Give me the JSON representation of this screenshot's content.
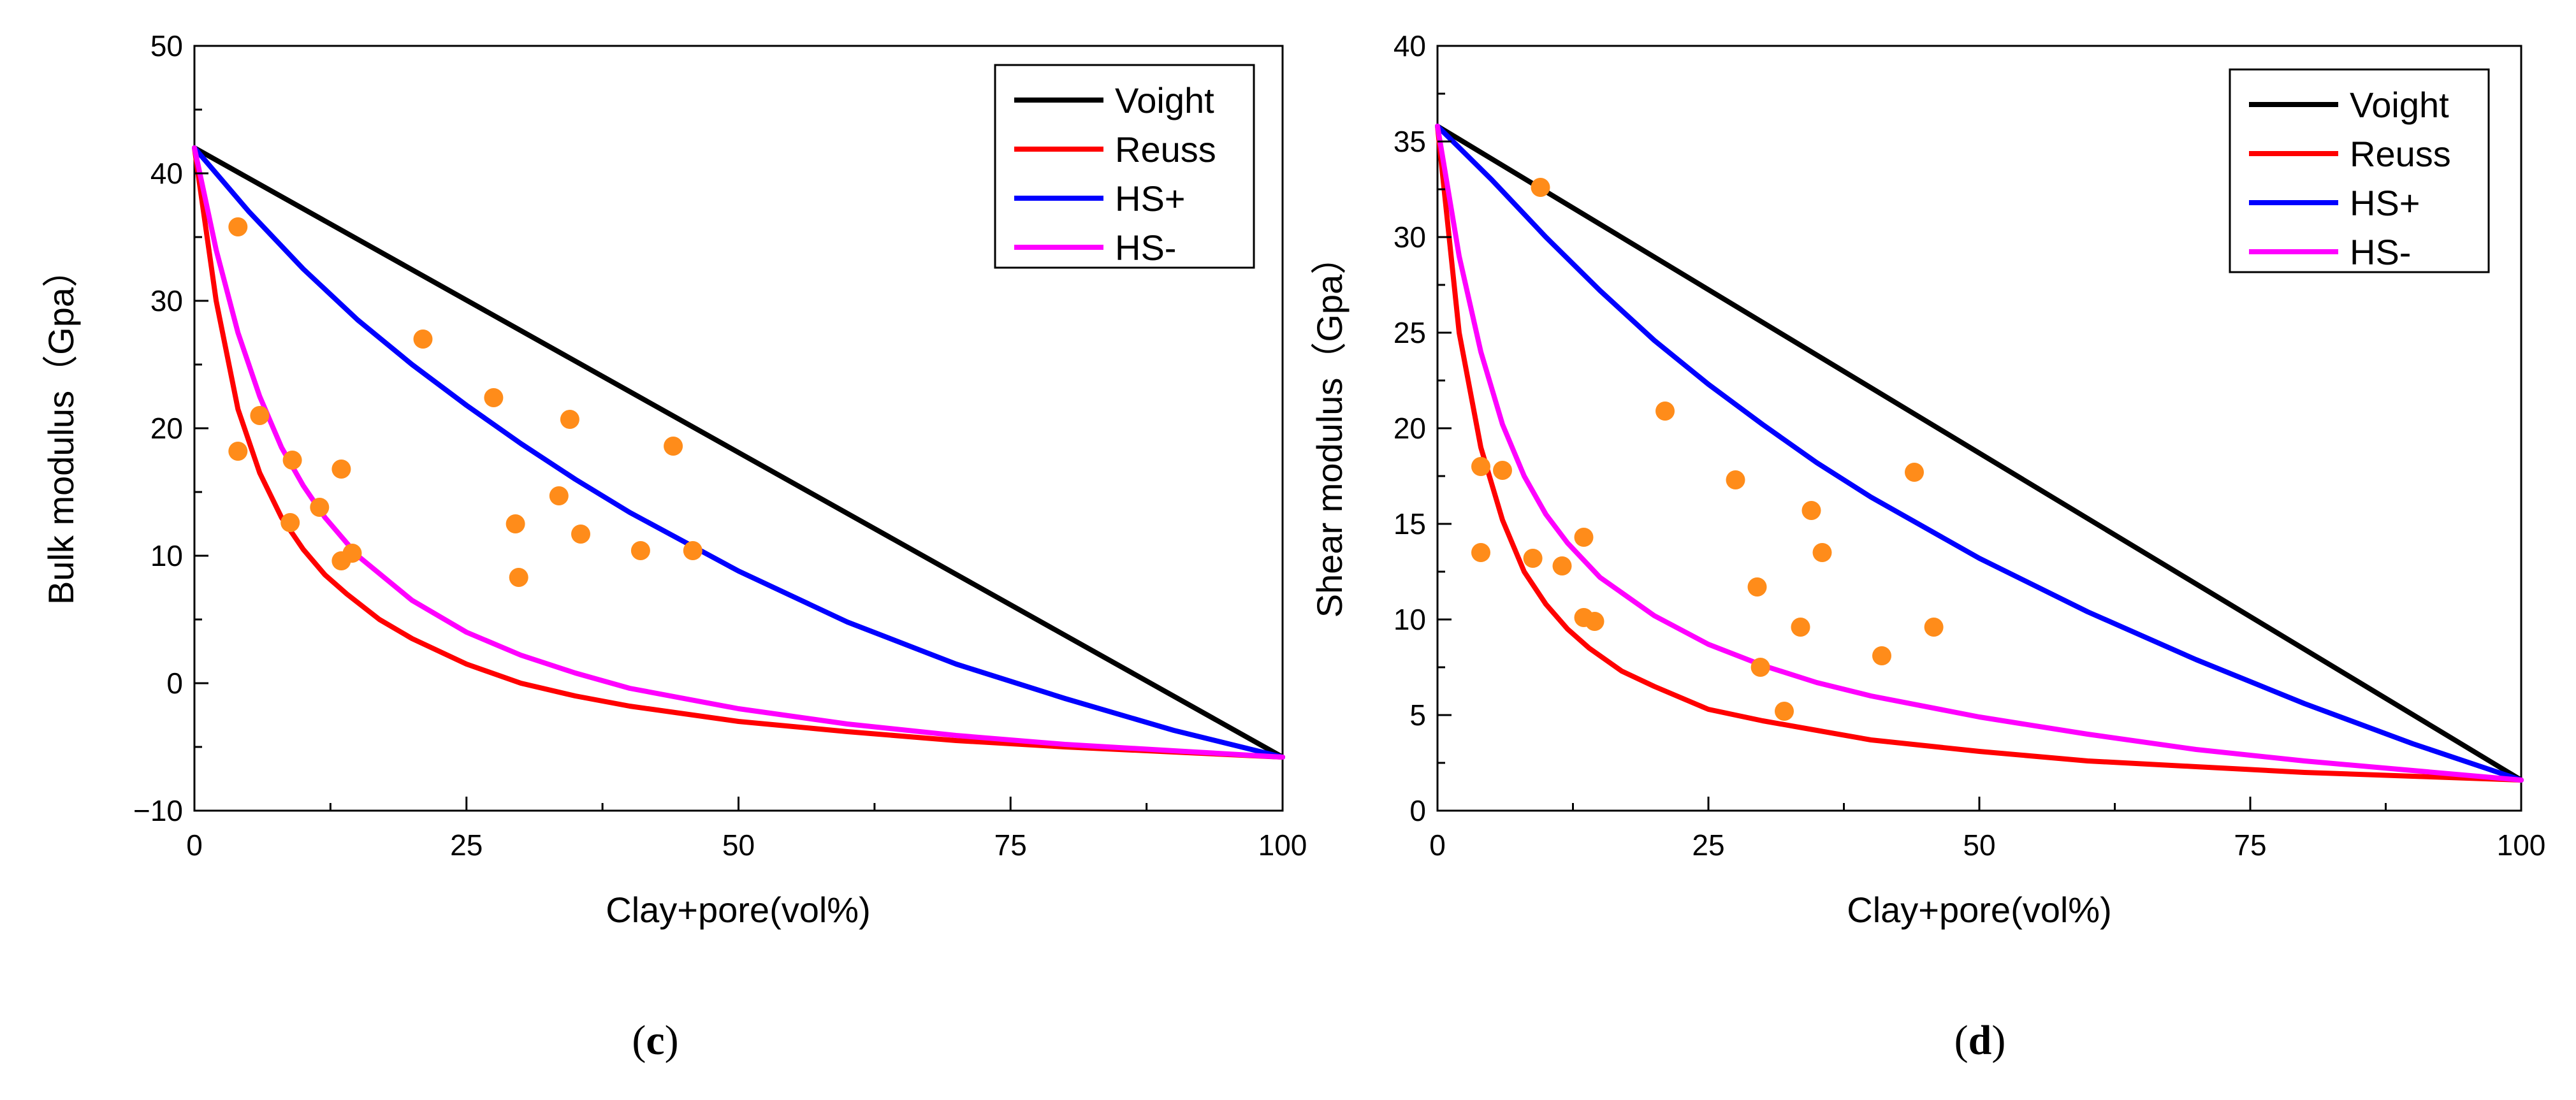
{
  "chart_data": [
    {
      "type": "line",
      "panel_label_open": "(",
      "panel_label_letter": "c",
      "panel_label_close": ")",
      "xlabel": "Clay+pore(vol%)",
      "ylabel": "Bulk modulus（Gpa）",
      "xlim": [
        0,
        100
      ],
      "ylim": [
        -10,
        50
      ],
      "xticks": [
        0,
        25,
        50,
        75,
        100
      ],
      "yticks": [
        -10,
        0,
        10,
        20,
        30,
        40,
        50
      ],
      "legend_position": "top-right",
      "series": [
        {
          "name": "Voight",
          "color": "#000000",
          "kind": "line",
          "x": [
            0,
            100
          ],
          "y": [
            42,
            -5.8
          ]
        },
        {
          "name": "Reuss",
          "color": "#ff0000",
          "kind": "line",
          "x": [
            0,
            2,
            4,
            6,
            8,
            10,
            12,
            14,
            17,
            20,
            25,
            30,
            35,
            40,
            50,
            60,
            70,
            80,
            90,
            100
          ],
          "y": [
            42,
            30,
            21.5,
            16.5,
            13,
            10.5,
            8.5,
            7,
            5,
            3.5,
            1.5,
            0,
            -1,
            -1.8,
            -3,
            -3.8,
            -4.5,
            -5,
            -5.4,
            -5.8
          ]
        },
        {
          "name": "HS+",
          "color": "#0000ff",
          "kind": "line",
          "x": [
            0,
            5,
            10,
            15,
            20,
            25,
            30,
            35,
            40,
            50,
            60,
            70,
            80,
            90,
            100
          ],
          "y": [
            42,
            37,
            32.5,
            28.5,
            25,
            21.8,
            18.8,
            16,
            13.4,
            8.8,
            4.8,
            1.5,
            -1.2,
            -3.7,
            -5.8
          ]
        },
        {
          "name": "HS-",
          "color": "#ff00ff",
          "kind": "line",
          "x": [
            0,
            2,
            4,
            6,
            8,
            10,
            12,
            15,
            20,
            25,
            30,
            35,
            40,
            50,
            60,
            70,
            80,
            90,
            100
          ],
          "y": [
            42,
            34,
            27.5,
            22.5,
            18.5,
            15.5,
            13,
            10,
            6.5,
            4,
            2.2,
            0.8,
            -0.4,
            -2,
            -3.2,
            -4.1,
            -4.8,
            -5.3,
            -5.8
          ]
        },
        {
          "name": "samples",
          "color": "#ff8c1a",
          "kind": "scatter",
          "points": [
            [
              4,
              35.8
            ],
            [
              4,
              18.2
            ],
            [
              6,
              21
            ],
            [
              9,
              17.5
            ],
            [
              8.8,
              12.6
            ],
            [
              11.5,
              13.8
            ],
            [
              13.5,
              16.8
            ],
            [
              13.5,
              9.6
            ],
            [
              14.5,
              10.2
            ],
            [
              21,
              27
            ],
            [
              27.5,
              22.4
            ],
            [
              34.5,
              20.7
            ],
            [
              29.5,
              12.5
            ],
            [
              29.8,
              8.3
            ],
            [
              33.5,
              14.7
            ],
            [
              35.5,
              11.7
            ],
            [
              41,
              10.4
            ],
            [
              44,
              18.6
            ],
            [
              45.8,
              10.4
            ]
          ]
        }
      ]
    },
    {
      "type": "line",
      "panel_label_open": "(",
      "panel_label_letter": "d",
      "panel_label_close": ")",
      "xlabel": "Clay+pore(vol%)",
      "ylabel": "Shear modulus（Gpa）",
      "xlim": [
        0,
        100
      ],
      "ylim": [
        0,
        40
      ],
      "xticks": [
        0,
        25,
        50,
        75,
        100
      ],
      "yticks": [
        0,
        5,
        10,
        15,
        20,
        25,
        30,
        35,
        40
      ],
      "legend_position": "top-right",
      "series": [
        {
          "name": "Voight",
          "color": "#000000",
          "kind": "line",
          "x": [
            0,
            100
          ],
          "y": [
            35.8,
            1.6
          ]
        },
        {
          "name": "Reuss",
          "color": "#ff0000",
          "kind": "line",
          "x": [
            0,
            2,
            4,
            6,
            8,
            10,
            12,
            14,
            17,
            20,
            25,
            30,
            35,
            40,
            50,
            60,
            70,
            80,
            90,
            100
          ],
          "y": [
            35.8,
            25,
            19,
            15.2,
            12.5,
            10.8,
            9.5,
            8.5,
            7.3,
            6.5,
            5.3,
            4.7,
            4.2,
            3.7,
            3.1,
            2.6,
            2.3,
            2,
            1.8,
            1.6
          ]
        },
        {
          "name": "HS+",
          "color": "#0000ff",
          "kind": "line",
          "x": [
            0,
            5,
            10,
            15,
            20,
            25,
            30,
            35,
            40,
            50,
            60,
            70,
            80,
            90,
            100
          ],
          "y": [
            35.8,
            33,
            30,
            27.2,
            24.6,
            22.3,
            20.2,
            18.2,
            16.4,
            13.2,
            10.4,
            7.9,
            5.6,
            3.5,
            1.6
          ]
        },
        {
          "name": "HS-",
          "color": "#ff00ff",
          "kind": "line",
          "x": [
            0,
            2,
            4,
            6,
            8,
            10,
            12,
            15,
            20,
            25,
            30,
            35,
            40,
            50,
            60,
            70,
            80,
            90,
            100
          ],
          "y": [
            35.8,
            29,
            24,
            20.2,
            17.5,
            15.5,
            14,
            12.2,
            10.2,
            8.7,
            7.6,
            6.7,
            6,
            4.9,
            4,
            3.2,
            2.6,
            2.1,
            1.6
          ]
        },
        {
          "name": "samples",
          "color": "#ff8c1a",
          "kind": "scatter",
          "points": [
            [
              9.5,
              32.6
            ],
            [
              4,
              18
            ],
            [
              6,
              17.8
            ],
            [
              4,
              13.5
            ],
            [
              8.8,
              13.2
            ],
            [
              11.5,
              12.8
            ],
            [
              13.5,
              14.3
            ],
            [
              13.5,
              10.1
            ],
            [
              14.5,
              9.9
            ],
            [
              21,
              20.9
            ],
            [
              27.5,
              17.3
            ],
            [
              34.5,
              15.7
            ],
            [
              29.5,
              11.7
            ],
            [
              29.8,
              7.5
            ],
            [
              32,
              5.2
            ],
            [
              33.5,
              9.6
            ],
            [
              35.5,
              13.5
            ],
            [
              41,
              8.1
            ],
            [
              44,
              17.7
            ],
            [
              45.8,
              9.6
            ]
          ]
        }
      ]
    }
  ]
}
